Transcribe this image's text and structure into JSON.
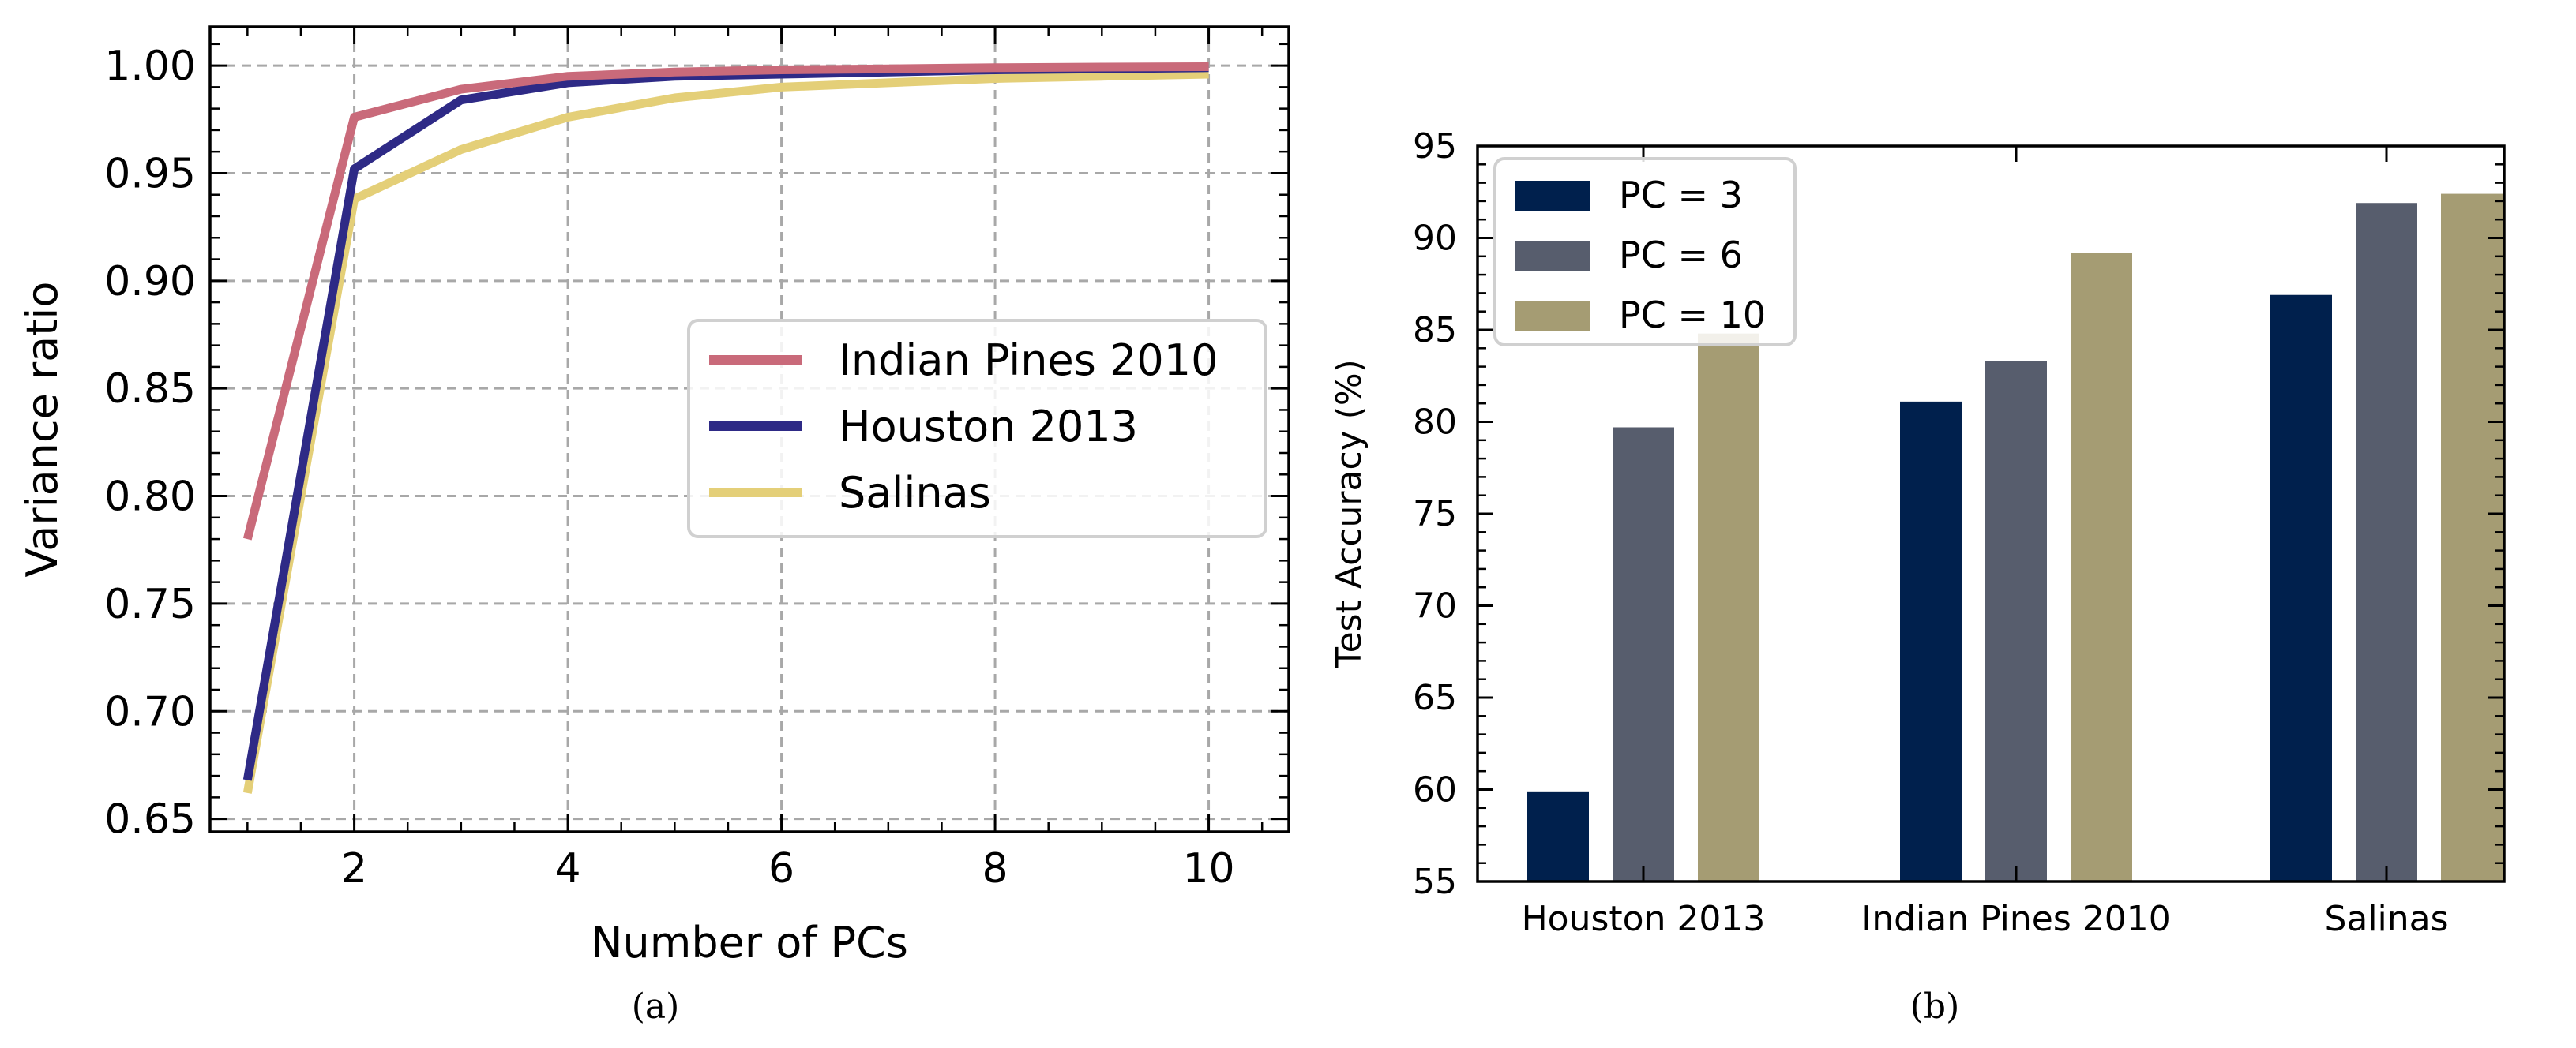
{
  "chart_data": [
    {
      "type": "line",
      "caption": "(a)",
      "title": "",
      "xlabel": "Number of PCs",
      "ylabel": "Variance ratio",
      "xlim": [
        0.65,
        10.75
      ],
      "ylim": [
        0.644,
        1.018
      ],
      "xticks": [
        2,
        4,
        6,
        8,
        10
      ],
      "yticks": [
        0.65,
        0.7,
        0.75,
        0.8,
        0.85,
        0.9,
        0.95,
        1.0
      ],
      "ytick_labels": [
        "0.65",
        "0.70",
        "0.75",
        "0.80",
        "0.85",
        "0.90",
        "0.95",
        "1.00"
      ],
      "grid": true,
      "legend_position": "center-right",
      "x": [
        1,
        2,
        3,
        4,
        5,
        6,
        7,
        8,
        9,
        10
      ],
      "series": [
        {
          "name": "Indian Pines 2010",
          "color": "#c96a7a",
          "values": [
            0.78,
            0.976,
            0.989,
            0.995,
            0.997,
            0.998,
            0.9985,
            0.999,
            0.9993,
            0.9995
          ]
        },
        {
          "name": "Houston 2013",
          "color": "#2e2a86",
          "values": [
            0.668,
            0.952,
            0.984,
            0.992,
            0.995,
            0.996,
            0.997,
            0.998,
            0.9985,
            0.999
          ]
        },
        {
          "name": "Salinas",
          "color": "#e4cf78",
          "values": [
            0.662,
            0.938,
            0.961,
            0.976,
            0.985,
            0.99,
            0.992,
            0.994,
            0.995,
            0.996
          ]
        }
      ]
    },
    {
      "type": "bar",
      "caption": "(b)",
      "title": "",
      "xlabel": "",
      "ylabel": "Test Accuracy (%)",
      "ylim": [
        55,
        95
      ],
      "yticks": [
        55,
        60,
        65,
        70,
        75,
        80,
        85,
        90,
        95
      ],
      "categories": [
        "Houston 2013",
        "Indian Pines 2010",
        "Salinas"
      ],
      "legend_position": "top-left",
      "series": [
        {
          "name": "PC = 3",
          "color": "#00204d",
          "values": [
            59.9,
            81.1,
            86.9
          ]
        },
        {
          "name": "PC = 6",
          "color": "#575d6d",
          "values": [
            79.7,
            83.3,
            91.9
          ]
        },
        {
          "name": "PC = 10",
          "color": "#a59c73",
          "values": [
            84.8,
            89.2,
            92.4
          ]
        }
      ]
    }
  ]
}
